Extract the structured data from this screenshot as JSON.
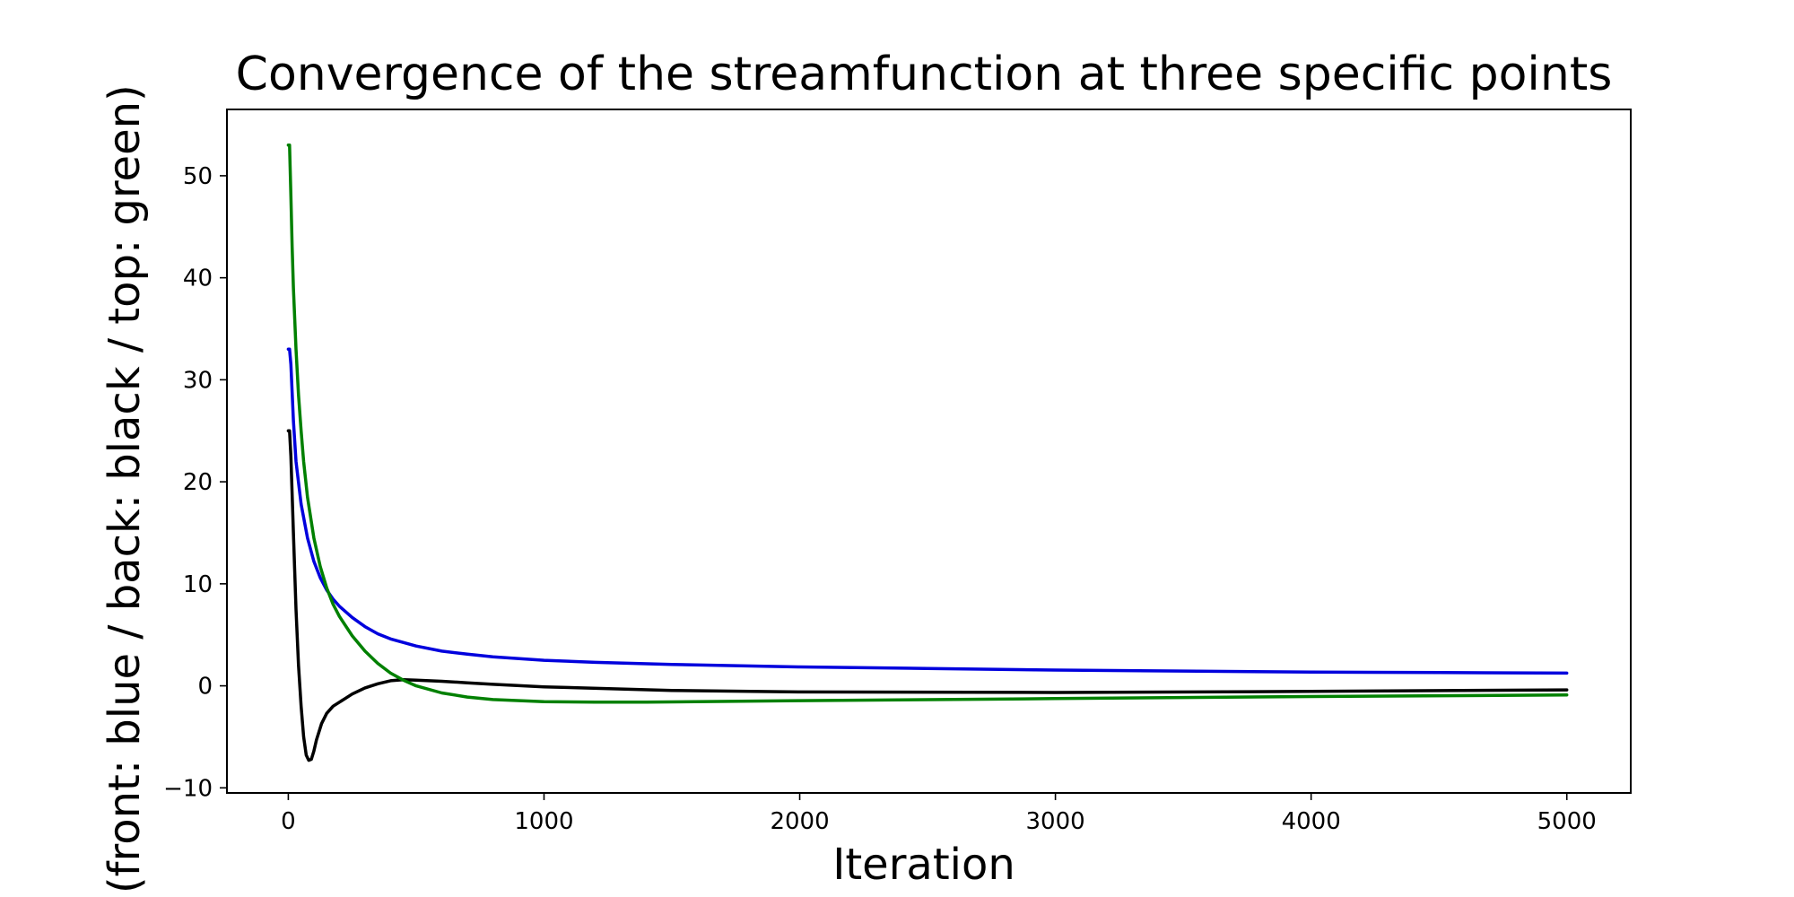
{
  "chart_data": {
    "type": "line",
    "title": "Convergence of the streamfunction at three specific points",
    "xlabel": "Iteration",
    "ylabel": "u (front: blue / back: black / top: green)",
    "xlim": [
      -240,
      5250
    ],
    "ylim": [
      -10.5,
      56.5
    ],
    "xticks": [
      0,
      1000,
      2000,
      3000,
      4000,
      5000
    ],
    "yticks": [
      -10,
      0,
      10,
      20,
      30,
      40,
      50
    ],
    "xtick_labels": [
      "0",
      "1000",
      "2000",
      "3000",
      "4000",
      "5000"
    ],
    "ytick_labels": [
      "−10",
      "0",
      "10",
      "20",
      "30",
      "40",
      "50"
    ],
    "grid": false,
    "series": [
      {
        "color": "#0000dd",
        "x": [
          0,
          5,
          10,
          20,
          30,
          50,
          75,
          100,
          125,
          150,
          175,
          200,
          250,
          300,
          350,
          400,
          500,
          600,
          700,
          800,
          1000,
          1200,
          1500,
          2000,
          2500,
          3000,
          3500,
          4000,
          4500,
          5000
        ],
        "y": [
          33,
          33,
          31.5,
          26,
          22,
          17.8,
          14.5,
          12.2,
          10.6,
          9.4,
          8.5,
          7.8,
          6.7,
          5.8,
          5.1,
          4.6,
          3.9,
          3.4,
          3.1,
          2.85,
          2.5,
          2.3,
          2.1,
          1.85,
          1.7,
          1.55,
          1.45,
          1.35,
          1.3,
          1.25
        ]
      },
      {
        "color": "#000000",
        "x": [
          0,
          5,
          10,
          20,
          30,
          40,
          50,
          60,
          70,
          80,
          90,
          100,
          110,
          130,
          150,
          175,
          200,
          250,
          300,
          350,
          400,
          450,
          500,
          600,
          700,
          800,
          1000,
          1500,
          2000,
          3000,
          4000,
          5000
        ],
        "y": [
          25,
          25,
          22.5,
          15,
          7.5,
          2,
          -2,
          -5,
          -6.8,
          -7.3,
          -7.2,
          -6.4,
          -5.3,
          -3.7,
          -2.7,
          -2.0,
          -1.6,
          -0.8,
          -0.2,
          0.2,
          0.5,
          0.6,
          0.55,
          0.45,
          0.3,
          0.15,
          -0.1,
          -0.45,
          -0.6,
          -0.65,
          -0.55,
          -0.4
        ]
      },
      {
        "color": "#008000",
        "x": [
          0,
          5,
          10,
          15,
          20,
          30,
          40,
          50,
          60,
          75,
          100,
          125,
          150,
          175,
          200,
          250,
          300,
          350,
          400,
          450,
          500,
          600,
          700,
          800,
          1000,
          1200,
          1400,
          2000,
          3000,
          4000,
          5000
        ],
        "y": [
          53,
          53,
          48,
          43,
          39,
          33,
          28.5,
          25,
          22,
          18.5,
          14.5,
          11.7,
          9.6,
          8.0,
          6.8,
          4.9,
          3.4,
          2.2,
          1.25,
          0.55,
          0.0,
          -0.7,
          -1.1,
          -1.35,
          -1.55,
          -1.6,
          -1.6,
          -1.45,
          -1.25,
          -1.05,
          -0.9
        ]
      }
    ]
  }
}
